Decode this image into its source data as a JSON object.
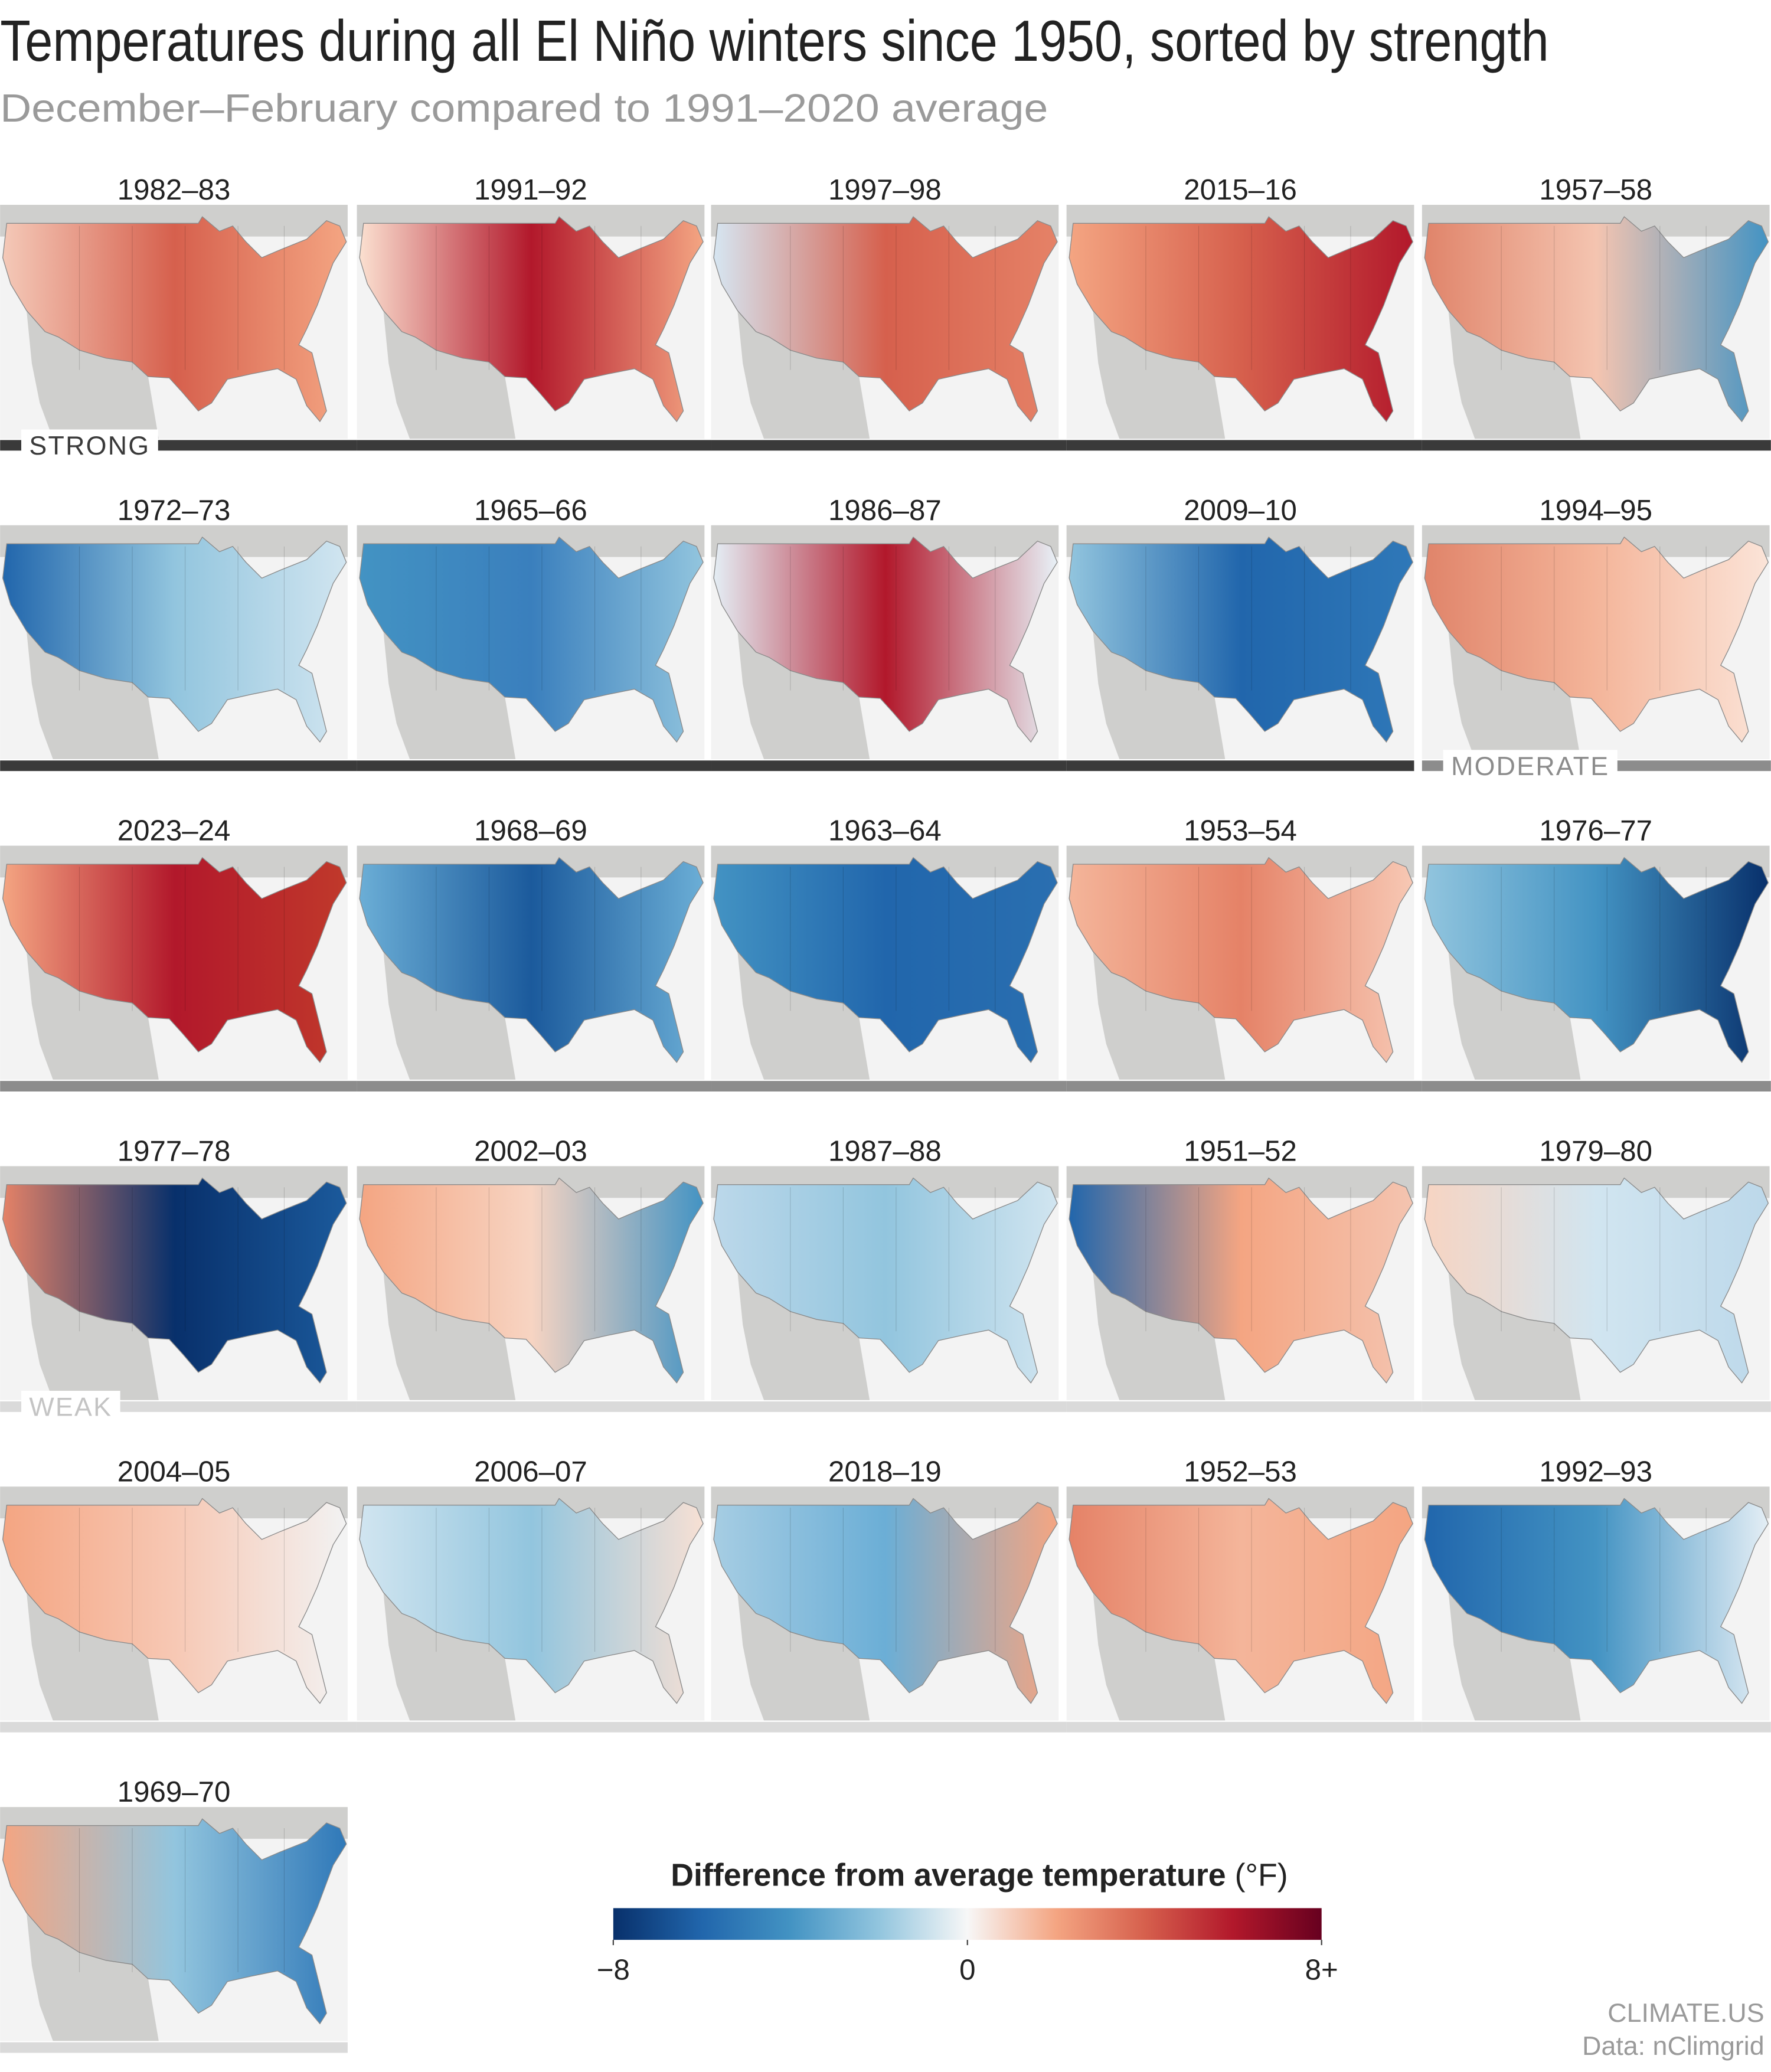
{
  "header": {
    "title": "Temperatures during all El Niño winters since 1950, sorted by strength",
    "subtitle": "December–February compared to 1991–2020 average"
  },
  "groups": [
    {
      "name": "STRONG",
      "color": "#3a3a3a",
      "panels": [
        {
          "label": "1982–83",
          "colors": [
            "#f4c9b8",
            "#d6604d",
            "#f4a582"
          ]
        },
        {
          "label": "1991–92",
          "colors": [
            "#fbe0d0",
            "#b2182b",
            "#f4a582"
          ]
        },
        {
          "label": "1997–98",
          "colors": [
            "#d6e6f2",
            "#d6604d",
            "#e58267"
          ]
        },
        {
          "label": "2015–16",
          "colors": [
            "#f4a582",
            "#d6604d",
            "#b2182b"
          ]
        },
        {
          "label": "1957–58",
          "colors": [
            "#e0846a",
            "#f4c4b0",
            "#4393c3"
          ]
        },
        {
          "label": "1972–73",
          "colors": [
            "#2166ac",
            "#92c5de",
            "#d1e5f0"
          ]
        },
        {
          "label": "1965–66",
          "colors": [
            "#4393c3",
            "#3a7fbd",
            "#92c5de"
          ]
        },
        {
          "label": "1986–87",
          "colors": [
            "#e4eef5",
            "#b2182b",
            "#e8f1f7"
          ]
        },
        {
          "label": "2009–10",
          "colors": [
            "#92c5de",
            "#2166ac",
            "#2f78b8"
          ]
        }
      ]
    },
    {
      "name": "MODERATE",
      "color": "#8c8c8c",
      "panels": [
        {
          "label": "1994–95",
          "colors": [
            "#e0846a",
            "#f4b59a",
            "#fbe4d8"
          ]
        },
        {
          "label": "2023–24",
          "colors": [
            "#f4a582",
            "#b2182b",
            "#c0392b"
          ]
        },
        {
          "label": "1968–69",
          "colors": [
            "#6baed6",
            "#1b5a9c",
            "#6baed6"
          ]
        },
        {
          "label": "1963–64",
          "colors": [
            "#4393c3",
            "#2166ac",
            "#2a6fb0"
          ]
        },
        {
          "label": "1953–54",
          "colors": [
            "#f4b59a",
            "#e58267",
            "#f7c8b4"
          ]
        },
        {
          "label": "1976–77",
          "colors": [
            "#92c5de",
            "#4393c3",
            "#08306b"
          ]
        }
      ]
    },
    {
      "name": "WEAK",
      "color": "#dadada",
      "panels": [
        {
          "label": "1977–78",
          "colors": [
            "#e58267",
            "#08306b",
            "#1b5a9c"
          ]
        },
        {
          "label": "2002–03",
          "colors": [
            "#f4a582",
            "#f7d4c2",
            "#4393c3"
          ]
        },
        {
          "label": "1987–88",
          "colors": [
            "#bcd8ea",
            "#92c5de",
            "#d1e5f0"
          ]
        },
        {
          "label": "1951–52",
          "colors": [
            "#2166ac",
            "#f4a582",
            "#f4c4b0"
          ]
        },
        {
          "label": "1979–80",
          "colors": [
            "#f7d4c2",
            "#d1e5f0",
            "#bcd8ea"
          ]
        },
        {
          "label": "2004–05",
          "colors": [
            "#f4a582",
            "#f7c8b4",
            "#f2f2f2"
          ]
        },
        {
          "label": "2006–07",
          "colors": [
            "#d1e5f0",
            "#92c5de",
            "#f7e0d4"
          ]
        },
        {
          "label": "2018–19",
          "colors": [
            "#a6cde3",
            "#6baed6",
            "#f4a582"
          ]
        },
        {
          "label": "1952–53",
          "colors": [
            "#e58267",
            "#f4b59a",
            "#f4a582"
          ]
        },
        {
          "label": "1992–93",
          "colors": [
            "#2166ac",
            "#4393c3",
            "#e4eef5"
          ]
        },
        {
          "label": "1969–70",
          "colors": [
            "#f4a582",
            "#92c5de",
            "#2f78b8"
          ]
        }
      ]
    }
  ],
  "legend": {
    "title": "Difference from average temperature",
    "unit": "(°F)",
    "lim": [
      -8,
      8
    ],
    "ticks": [
      {
        "value": -8,
        "label": "−8"
      },
      0,
      {
        "value": 8,
        "label": "8+"
      }
    ],
    "colors": [
      "#08306b",
      "#2166ac",
      "#4393c3",
      "#92c5de",
      "#f7f7f7",
      "#f4a582",
      "#d6604d",
      "#b2182b",
      "#67001f"
    ]
  },
  "footer": {
    "source": "CLIMATE.US",
    "data": "Data: nClimgrid"
  }
}
